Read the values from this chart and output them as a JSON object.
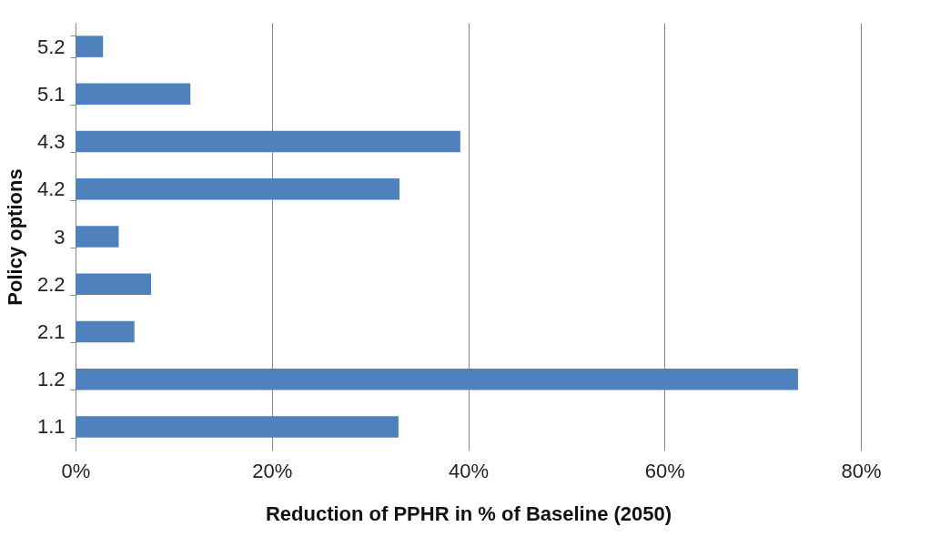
{
  "chart_data": {
    "type": "bar",
    "orientation": "horizontal",
    "xlabel": "Reduction of PPHR in % of Baseline (2050)",
    "ylabel": "Policy options",
    "categories": [
      "5.2",
      "5.1",
      "4.3",
      "4.2",
      "3",
      "2.2",
      "2.1",
      "1.2",
      "1.1"
    ],
    "values": [
      2.8,
      11.7,
      39.2,
      33.0,
      4.4,
      7.7,
      6.0,
      73.6,
      32.9
    ],
    "color": "#4f81bd",
    "xlim": [
      0,
      80
    ],
    "xticks": [
      {
        "value": 0,
        "label": "0%"
      },
      {
        "value": 20,
        "label": "20%"
      },
      {
        "value": 40,
        "label": "40%"
      },
      {
        "value": 60,
        "label": "60%"
      },
      {
        "value": 80,
        "label": "80%"
      }
    ],
    "grid": "x"
  }
}
